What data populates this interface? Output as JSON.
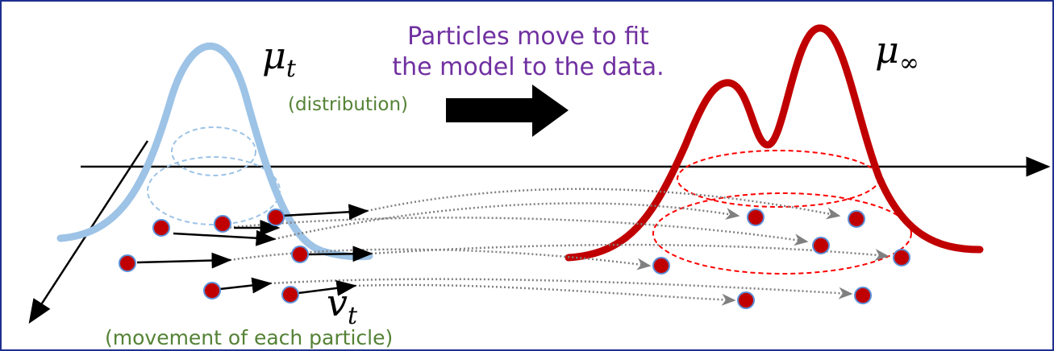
{
  "caption": {
    "lines": [
      "Particles move to fit",
      "the model to the data."
    ]
  },
  "current_distribution": {
    "symbol": "μ",
    "subscript": "t",
    "note": "(distribution)"
  },
  "limit_distribution": {
    "symbol": "μ",
    "subscript": "∞"
  },
  "velocity": {
    "symbol": "v",
    "subscript": "t",
    "note": "(movement of each particle)"
  }
}
